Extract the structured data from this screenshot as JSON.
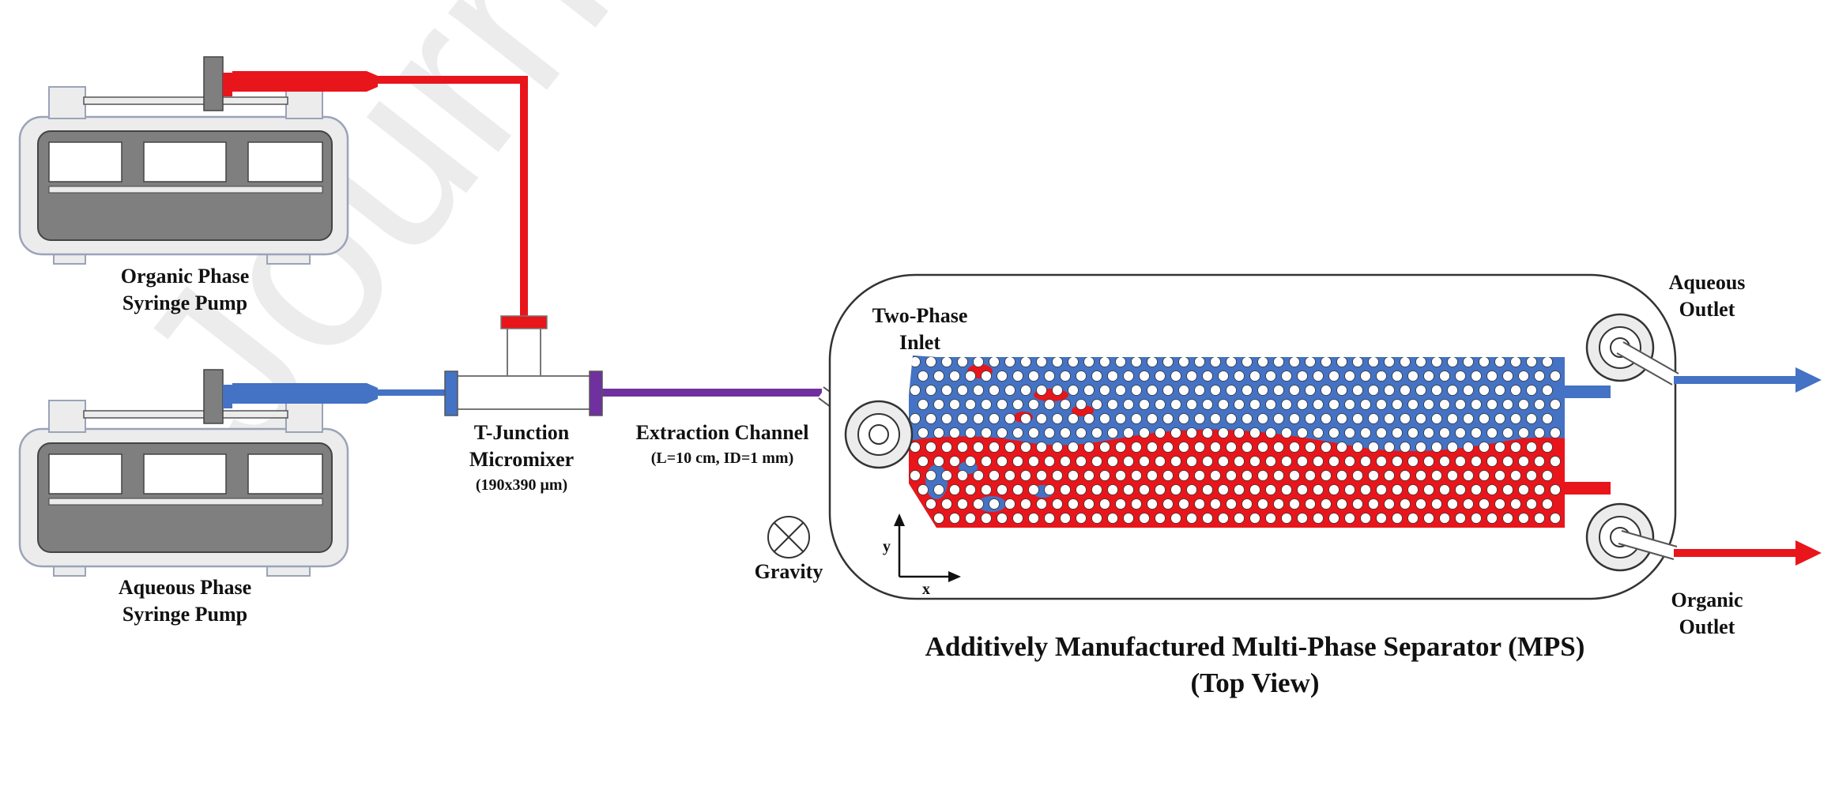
{
  "watermark": "Journal",
  "colors": {
    "organic": "#e8151b",
    "aqueous": "#4472c4",
    "mixed": "#7030a0",
    "pump_body": "#7f7f7f",
    "pump_frame": "#ececec",
    "outline": "#9aa3b8"
  },
  "pumps": {
    "organic": {
      "label_line1": "Organic Phase",
      "label_line2": "Syringe Pump"
    },
    "aqueous": {
      "label_line1": "Aqueous Phase",
      "label_line2": "Syringe Pump"
    }
  },
  "mixer": {
    "label_line1": "T-Junction",
    "label_line2": "Micromixer",
    "dims": "(190x390 μm)"
  },
  "channel": {
    "label": "Extraction Channel",
    "spec": "(L=10 cm, ID=1 mm)"
  },
  "gravity": {
    "label": "Gravity",
    "icon": "into-page-symbol"
  },
  "axes": {
    "x": "x",
    "y": "y"
  },
  "separator": {
    "inlet_line1": "Two-Phase",
    "inlet_line2": "Inlet",
    "aqueous_outlet_line1": "Aqueous",
    "aqueous_outlet_line2": "Outlet",
    "organic_outlet_line1": "Organic",
    "organic_outlet_line2": "Outlet",
    "title_line1": "Additively Manufactured Multi-Phase Separator (MPS)",
    "title_line2": "(Top View)"
  }
}
